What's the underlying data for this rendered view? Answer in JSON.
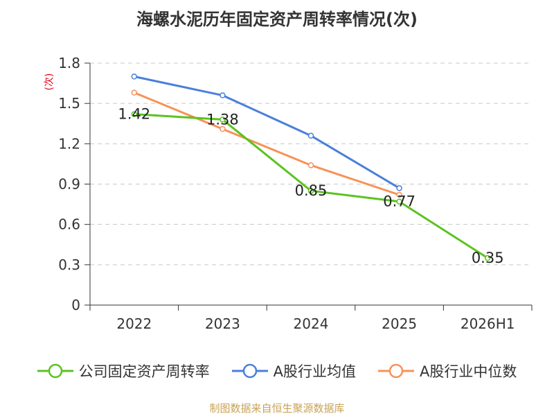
{
  "chart_data": {
    "type": "line",
    "title": "海螺水泥历年固定资产周转率情况(次)",
    "y_unit": "(次)",
    "categories": [
      "2022",
      "2023",
      "2024",
      "2025",
      "2026H1"
    ],
    "ylim": [
      0,
      1.8
    ],
    "yticks": [
      "0",
      "0.3",
      "0.6",
      "0.9",
      "1.2",
      "1.5",
      "1.8"
    ],
    "ytick_values": [
      0,
      0.3,
      0.6,
      0.9,
      1.2,
      1.5,
      1.8
    ],
    "grid": true,
    "legend_position": "bottom",
    "series": [
      {
        "name": "公司固定资产周转率",
        "color": "#5ac31f",
        "values": [
          1.42,
          1.38,
          0.85,
          0.77,
          0.35
        ],
        "labels": [
          "1.42",
          "1.38",
          "0.85",
          "0.77",
          "0.35"
        ]
      },
      {
        "name": "A股行业均值",
        "color": "#4a7fdc",
        "values": [
          1.7,
          1.56,
          1.26,
          0.87,
          null
        ]
      },
      {
        "name": "A股行业中位数",
        "color": "#f79256",
        "values": [
          1.58,
          1.31,
          1.04,
          0.82,
          null
        ]
      }
    ]
  },
  "source": "制图数据来自恒生聚源数据库"
}
